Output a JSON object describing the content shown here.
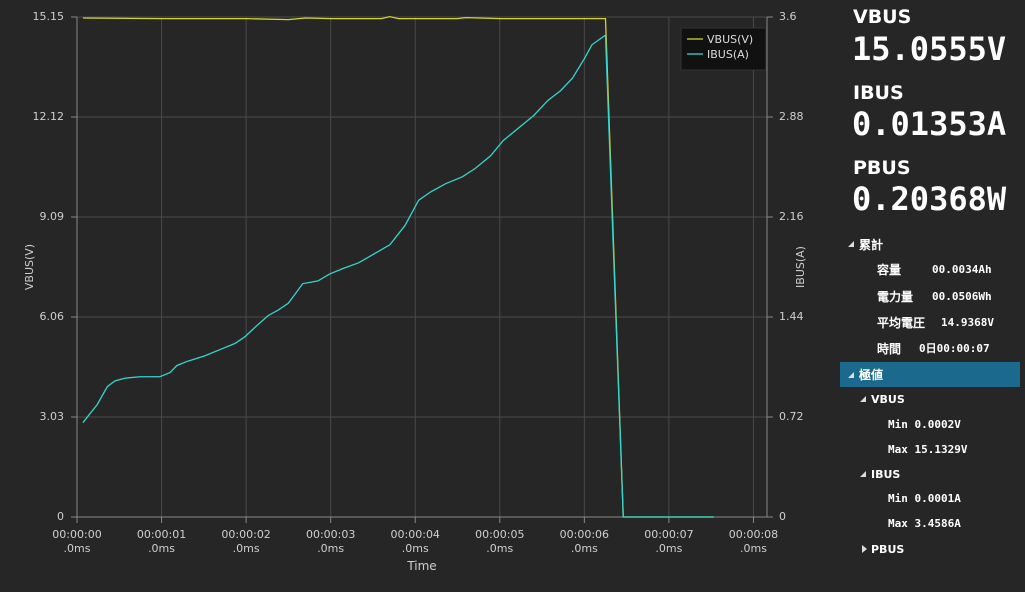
{
  "chart_data": {
    "type": "line",
    "x_label": "Time",
    "y_label": "VBUS(V)",
    "y2_label": "IBUS(A)",
    "xlim": [
      0,
      8.16
    ],
    "xticks": [
      {
        "value": 0,
        "label": "00:00:00\n.0ms"
      },
      {
        "value": 1,
        "label": "00:00:01\n.0ms"
      },
      {
        "value": 2,
        "label": "00:00:02\n.0ms"
      },
      {
        "value": 3,
        "label": "00:00:03\n.0ms"
      },
      {
        "value": 4,
        "label": "00:00:04\n.0ms"
      },
      {
        "value": 5,
        "label": "00:00:05\n.0ms"
      },
      {
        "value": 6,
        "label": "00:00:06\n.0ms"
      },
      {
        "value": 7,
        "label": "00:00:07\n.0ms"
      },
      {
        "value": 8,
        "label": "00:00:08\n.0ms"
      }
    ],
    "ylim": [
      0,
      15.15
    ],
    "yticks": [
      0,
      3.03,
      6.06,
      9.09,
      12.12,
      15.15
    ],
    "y2lim": [
      0,
      3.6
    ],
    "y2ticks": [
      0,
      0.72,
      1.44,
      2.16,
      2.88,
      3.6
    ],
    "grid": true,
    "legend": "top-right",
    "series": [
      {
        "name": "VBUS(V)",
        "color": "#d6d22c",
        "x": [
          0.07,
          1.0,
          2.0,
          2.5,
          2.7,
          3.0,
          3.6,
          3.7,
          3.8,
          4.5,
          4.6,
          5.0,
          6.25,
          6.46,
          7.53
        ],
        "values": [
          15.12,
          15.1,
          15.1,
          15.07,
          15.12,
          15.1,
          15.1,
          15.16,
          15.1,
          15.1,
          15.13,
          15.1,
          15.1,
          0,
          0
        ]
      },
      {
        "name": "IBUS(A)",
        "color": "#33d6cf",
        "axis": "y2",
        "x": [
          0.07,
          0.24,
          0.36,
          0.45,
          0.57,
          0.75,
          0.98,
          1.1,
          1.18,
          1.3,
          1.51,
          1.67,
          1.87,
          1.99,
          2.13,
          2.26,
          2.38,
          2.5,
          2.67,
          2.85,
          2.99,
          3.15,
          3.33,
          3.53,
          3.7,
          3.88,
          4.04,
          4.18,
          4.36,
          4.56,
          4.71,
          4.89,
          5.04,
          5.22,
          5.4,
          5.57,
          5.72,
          5.86,
          6.0,
          6.09,
          6.25,
          6.46,
          7.53
        ],
        "values": [
          0.68,
          0.81,
          0.94,
          0.98,
          1.0,
          1.01,
          1.01,
          1.04,
          1.09,
          1.12,
          1.16,
          1.2,
          1.25,
          1.3,
          1.38,
          1.45,
          1.49,
          1.54,
          1.68,
          1.7,
          1.75,
          1.79,
          1.83,
          1.9,
          1.96,
          2.1,
          2.28,
          2.34,
          2.4,
          2.45,
          2.51,
          2.6,
          2.71,
          2.8,
          2.89,
          3.0,
          3.07,
          3.16,
          3.3,
          3.4,
          3.47,
          0,
          0
        ]
      }
    ]
  },
  "panel": {
    "readings": [
      {
        "label": "VBUS",
        "value": "15.0555V"
      },
      {
        "label": "IBUS",
        "value": "0.01353A"
      },
      {
        "label": "PBUS",
        "value": "0.20368W"
      }
    ],
    "cumulative": {
      "title": "累計",
      "items": [
        {
          "label": "容量",
          "value": "00.0034Ah"
        },
        {
          "label": "電力量",
          "value": "00.0506Wh"
        },
        {
          "label": "平均電圧",
          "value": "14.9368V"
        },
        {
          "label": "時間",
          "value": "0日00:00:07"
        }
      ]
    },
    "extremes": {
      "title": "極値",
      "groups": [
        {
          "name": "VBUS",
          "items": [
            "Min 0.0002V",
            "Max 15.1329V"
          ]
        },
        {
          "name": "IBUS",
          "items": [
            "Min 0.0001A",
            "Max 3.4586A"
          ]
        },
        {
          "name": "PBUS",
          "items": []
        }
      ]
    }
  }
}
